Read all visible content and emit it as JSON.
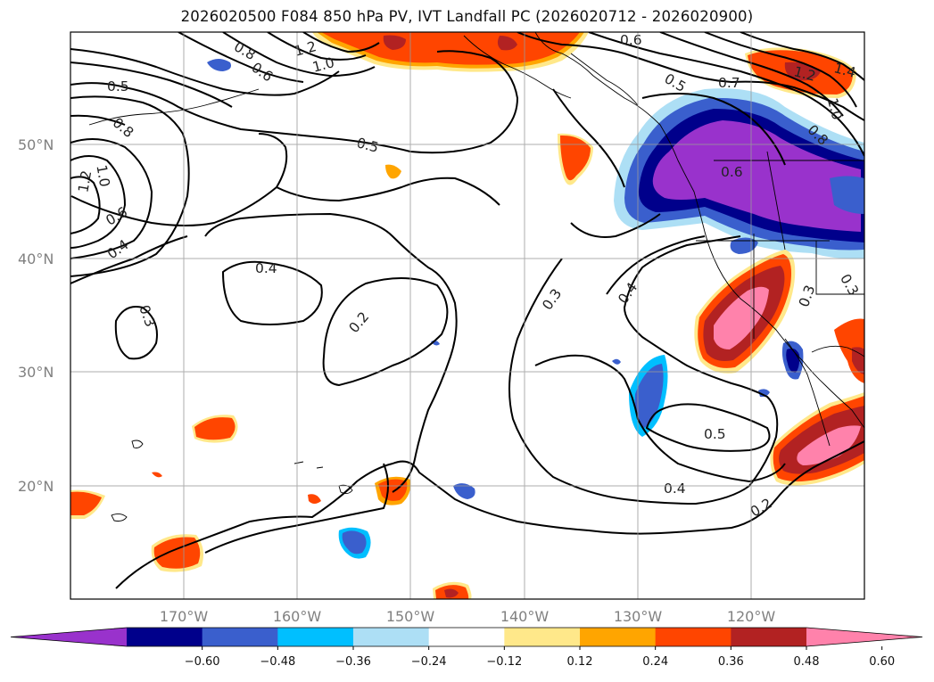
{
  "title": "2026020500 F084 850 hPa PV, IVT Landfall PC (2026020712 - 2026020900)",
  "lat_labels": [
    "50°N",
    "40°N",
    "30°N",
    "20°N"
  ],
  "lon_labels": [
    "170°W",
    "160°W",
    "150°W",
    "140°W",
    "130°W",
    "120°W"
  ],
  "colorbar": {
    "colors": [
      "#9932CC",
      "#00008B",
      "#3A5FCD",
      "#00BFFF",
      "#ADDFF5",
      "#FFFFFF",
      "#FFE88A",
      "#FFA500",
      "#FF4500",
      "#B22222",
      "#FF82AB"
    ],
    "labels": [
      "−0.60",
      "−0.48",
      "−0.36",
      "−0.24",
      "−0.12",
      "0.12",
      "0.24",
      "0.36",
      "0.48",
      "0.60"
    ]
  },
  "contour_labels": [
    {
      "id": "c05a",
      "text": "0.5"
    },
    {
      "id": "c08a",
      "text": "0.8"
    },
    {
      "id": "c12a",
      "text": "1.2"
    },
    {
      "id": "c10a",
      "text": "1.0"
    },
    {
      "id": "c06a",
      "text": "0.6"
    },
    {
      "id": "c04a",
      "text": "0.4"
    },
    {
      "id": "c03a",
      "text": "0.3"
    },
    {
      "id": "c04b",
      "text": "0.4"
    },
    {
      "id": "c02a",
      "text": "0.2"
    },
    {
      "id": "c05b",
      "text": "0.5"
    },
    {
      "id": "c03b",
      "text": "0.3"
    },
    {
      "id": "c04c",
      "text": "0.4"
    },
    {
      "id": "c05c",
      "text": "0.5"
    },
    {
      "id": "c04d",
      "text": "0.4"
    },
    {
      "id": "c02b",
      "text": "0.2"
    },
    {
      "id": "c06b",
      "text": "0.6"
    },
    {
      "id": "c05d",
      "text": "0.5"
    },
    {
      "id": "c07a",
      "text": "0.7"
    },
    {
      "id": "c06c",
      "text": "0.6"
    },
    {
      "id": "c12b",
      "text": "1.2"
    },
    {
      "id": "c14a",
      "text": "1.4"
    },
    {
      "id": "c10b",
      "text": "1.0"
    },
    {
      "id": "c08b",
      "text": "0.8"
    },
    {
      "id": "c03c",
      "text": "0.3"
    },
    {
      "id": "c03d",
      "text": "0.3"
    },
    {
      "id": "c08c",
      "text": "0.8"
    },
    {
      "id": "c12c",
      "text": "1.2"
    },
    {
      "id": "c10c",
      "text": "1.0"
    },
    {
      "id": "c06d",
      "text": "0.6"
    }
  ]
}
